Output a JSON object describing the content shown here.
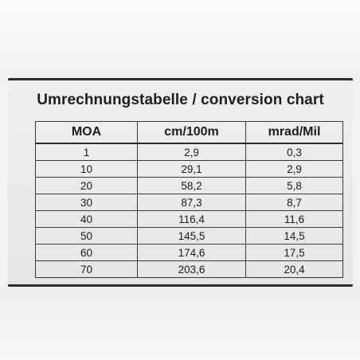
{
  "title": "Umrechnungstabelle / conversion chart",
  "headers": [
    "MOA",
    "cm/100m",
    "mrad/Mil"
  ],
  "rows": [
    [
      "1",
      "2,9",
      "0,3"
    ],
    [
      "10",
      "29,1",
      "2,9"
    ],
    [
      "20",
      "58,2",
      "5,8"
    ],
    [
      "30",
      "87,3",
      "8,7"
    ],
    [
      "40",
      "116,4",
      "11,6"
    ],
    [
      "50",
      "145,5",
      "14,5"
    ],
    [
      "60",
      "174,6",
      "17,5"
    ],
    [
      "70",
      "203,6",
      "20,4"
    ]
  ]
}
